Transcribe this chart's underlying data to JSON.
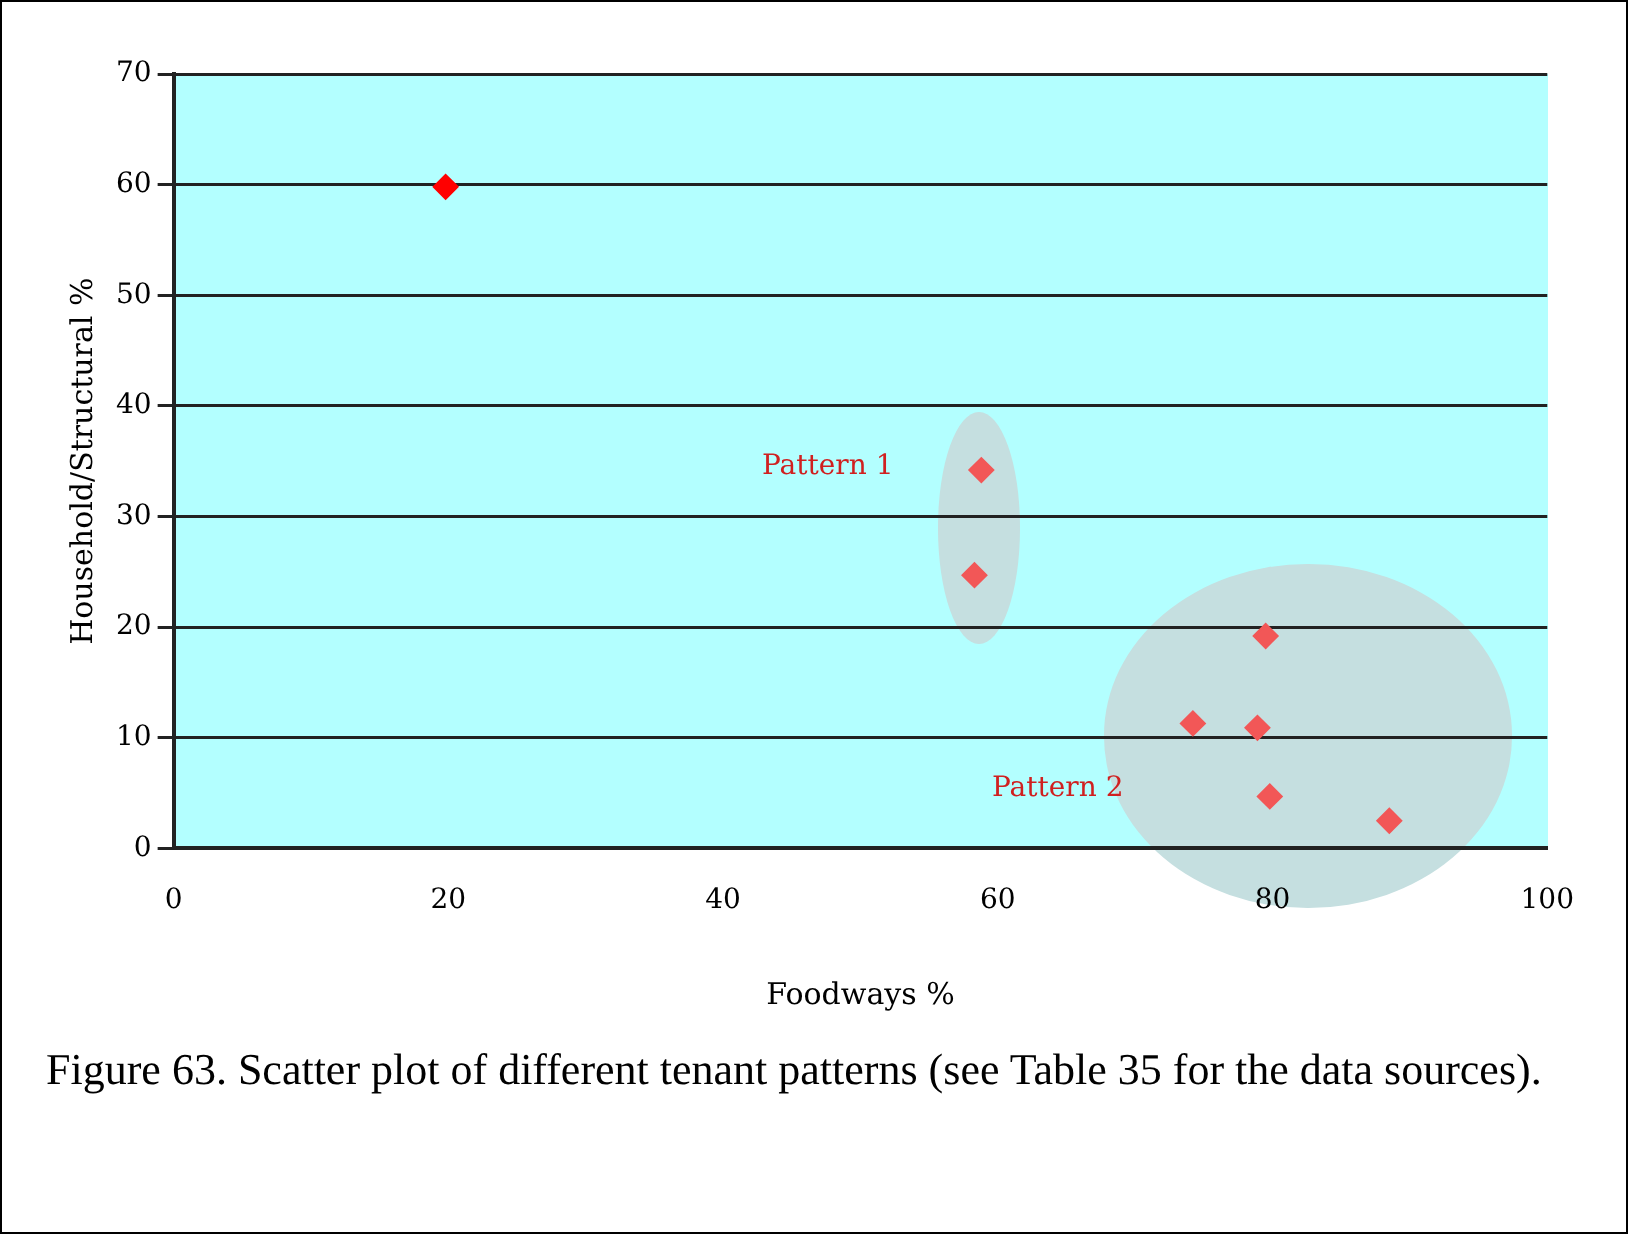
{
  "chart_data": {
    "type": "scatter",
    "xlabel": "Foodways %",
    "ylabel": "Household/Structural %",
    "x": [
      19.8,
      58.8,
      58.3,
      79.5,
      74.2,
      78.9,
      79.8,
      88.5
    ],
    "values": [
      59.8,
      34.2,
      24.7,
      19.2,
      11.3,
      10.9,
      4.7,
      2.5
    ],
    "colors": [
      "#ff0000",
      "#f25757",
      "#f25757",
      "#f25757",
      "#f25757",
      "#f25757",
      "#f25757",
      "#f25757"
    ],
    "xlim": [
      0,
      100
    ],
    "xticks": [
      0,
      20,
      40,
      60,
      80,
      100
    ],
    "ylim": [
      0,
      70
    ],
    "yticks": [
      0,
      10,
      20,
      30,
      40,
      50,
      60,
      70
    ],
    "grid": "y",
    "legend": false,
    "marker": "diamond",
    "annotations": [
      "Pattern 1",
      "Pattern 2",
      "Figure 63. Scatter plot of different tenant patterns (see Table 35 for the data sources)."
    ]
  }
}
